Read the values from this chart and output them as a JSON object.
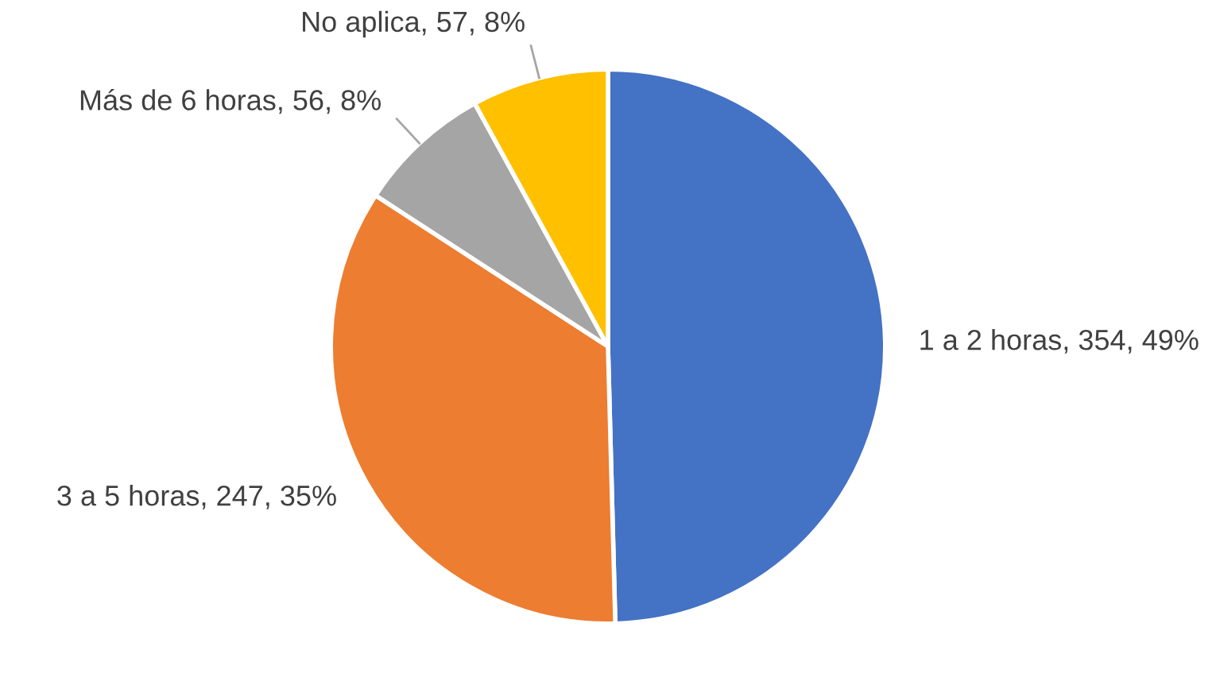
{
  "chart_data": {
    "type": "pie",
    "categories": [
      "1 a 2 horas",
      "3 a 5 horas",
      "Más de 6 horas",
      "No aplica"
    ],
    "values": [
      354,
      247,
      56,
      57
    ],
    "colors": [
      "#4472c4",
      "#ed7d31",
      "#a5a5a5",
      "#ffc000"
    ],
    "value_labels": [
      ", 354, 49%",
      ", 247, 35%",
      ", 56, 8%",
      ", 57, 8%"
    ],
    "legend": false
  }
}
